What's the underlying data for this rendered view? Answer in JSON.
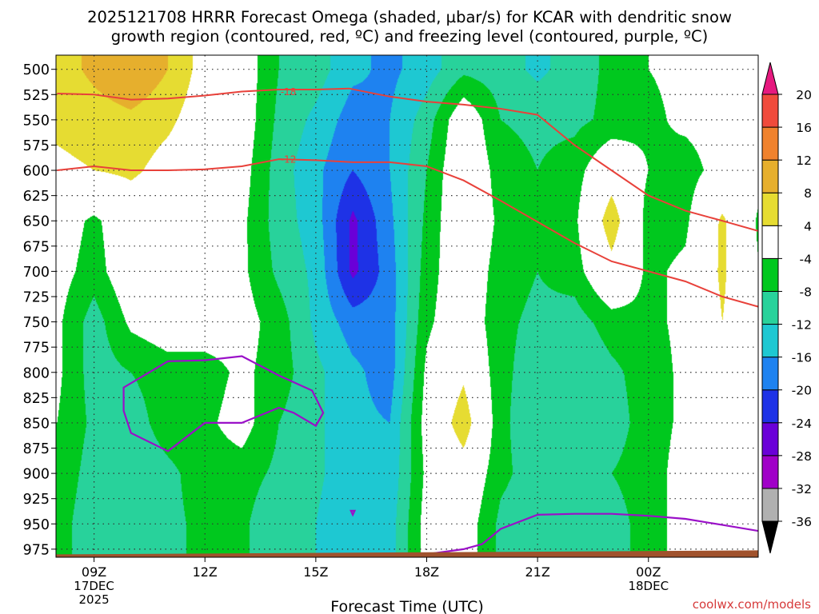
{
  "chart_data": {
    "type": "heatmap",
    "title_line1": "2025121708 HRRR Forecast Omega (shaded, µbar/s) for KCAR with dendritic snow",
    "title_line2": "growth region (contoured, red, ºC) and freezing level (contoured, purple, ºC)",
    "xlabel": "Forecast Time (UTC)",
    "credit": "coolwx.com/models",
    "x_range_hours": [
      7.97,
      26.97
    ],
    "y_range_mb": [
      486,
      983
    ],
    "x_ticks": [
      {
        "h": 9,
        "label": "09Z",
        "sub1": "17DEC",
        "sub2": "2025"
      },
      {
        "h": 12,
        "label": "12Z",
        "sub1": "",
        "sub2": ""
      },
      {
        "h": 15,
        "label": "15Z",
        "sub1": "",
        "sub2": ""
      },
      {
        "h": 18,
        "label": "18Z",
        "sub1": "",
        "sub2": ""
      },
      {
        "h": 21,
        "label": "21Z",
        "sub1": "",
        "sub2": ""
      },
      {
        "h": 24,
        "label": "00Z",
        "sub1": "18DEC",
        "sub2": ""
      }
    ],
    "y_ticks": [
      500,
      525,
      550,
      575,
      600,
      625,
      650,
      675,
      700,
      725,
      750,
      775,
      800,
      825,
      850,
      875,
      900,
      925,
      950,
      975
    ],
    "y_tick_labels": [
      "500",
      "525",
      "550",
      "575",
      "600",
      "625",
      "650",
      "675",
      "700",
      "725",
      "750",
      "775",
      "800",
      "825",
      "850",
      "875",
      "900",
      "925",
      "950",
      "975"
    ],
    "colorbar": {
      "levels": [
        -36,
        -32,
        -28,
        -24,
        -20,
        -16,
        -12,
        -8,
        -4,
        4,
        8,
        12,
        16,
        20
      ],
      "labels": [
        "-36",
        "-32",
        "-28",
        "-24",
        "-20",
        "-16",
        "-12",
        "-8",
        "-4",
        "4",
        "8",
        "12",
        "16",
        "20"
      ],
      "colors": [
        "#b0b0b0",
        "#a000c8",
        "#6a00d8",
        "#1e32e6",
        "#1e82f0",
        "#1ec8d2",
        "#28d29b",
        "#00c81e",
        "#ffffff",
        "#e6dc32",
        "#e6af2d",
        "#f0822d",
        "#f04b3c"
      ],
      "below_color": "#000000",
      "above_color": "#e6197f"
    },
    "omega_field": {
      "hours": [
        8.0,
        9.0,
        10.0,
        11.0,
        12.0,
        13.0,
        14.0,
        15.0,
        16.0,
        17.0,
        18.0,
        19.0,
        20.0,
        21.0,
        22.0,
        23.0,
        24.0,
        25.0,
        26.0,
        27.0
      ],
      "levels": [
        500,
        550,
        600,
        650,
        700,
        750,
        800,
        850,
        900,
        950
      ],
      "values": [
        [
          6,
          9,
          12,
          8,
          2,
          -1,
          -8,
          -10,
          -15,
          -17,
          -14,
          -9,
          -10,
          -13,
          -10,
          -7,
          -4,
          -3,
          -1,
          -2
        ],
        [
          5,
          6,
          7,
          5,
          1,
          -1,
          -9,
          -13,
          -18,
          -16,
          -10,
          0,
          -8,
          -9,
          -9,
          -7,
          -5,
          -3,
          -2,
          -2
        ],
        [
          3,
          4,
          5,
          2,
          0,
          -2,
          -10,
          -15,
          -20,
          -16,
          -8,
          1,
          -6,
          -8,
          -6,
          1,
          -4,
          -6,
          -2,
          -2
        ],
        [
          -1,
          -5,
          0,
          0,
          0,
          -3,
          -10,
          -14,
          -25,
          -17,
          -7,
          1,
          -5,
          -8,
          -5,
          7,
          -6,
          -5,
          5,
          -5
        ],
        [
          -2,
          -6,
          0,
          0,
          0,
          -3,
          -9,
          -13,
          -25,
          -18,
          -6,
          0,
          -6,
          -8,
          -6,
          2,
          -5,
          -3,
          5,
          -4
        ],
        [
          -3,
          -10,
          -3,
          -1,
          -1,
          -2,
          -6,
          -13,
          -18,
          -18,
          -5,
          0,
          -7,
          -9,
          -10,
          -6,
          -5,
          -3,
          4,
          -2
        ],
        [
          -3,
          -10,
          -8,
          -6,
          -6,
          -3,
          -6,
          -11,
          -15,
          -18,
          -3,
          3,
          -7,
          -10,
          -12,
          -9,
          -6,
          -3,
          4,
          -2
        ],
        [
          -4,
          -9,
          -10,
          -6,
          -5,
          -2,
          -8,
          -11,
          -15,
          -16,
          -2,
          7,
          -7,
          -11,
          -12,
          -10,
          -6,
          -3,
          4,
          -1
        ],
        [
          -5,
          -10,
          -11,
          -9,
          -6,
          -6,
          -9,
          -11,
          -15,
          -15,
          -3,
          1,
          -7,
          -10,
          -10,
          -8,
          -6,
          -2,
          -1,
          -1
        ],
        [
          -6,
          -11,
          -10,
          -9,
          -7,
          -7,
          -12,
          -12,
          -16,
          -14,
          -2,
          -1,
          -9,
          -11,
          -11,
          -10,
          -6,
          -2,
          -1,
          -1
        ]
      ]
    },
    "dendritic_contours": [
      {
        "label": "-18",
        "label_at": [
          14.0,
          522
        ],
        "points": [
          [
            8.0,
            524
          ],
          [
            9.0,
            525
          ],
          [
            10.0,
            530
          ],
          [
            11.0,
            529
          ],
          [
            12.0,
            526
          ],
          [
            13.0,
            522
          ],
          [
            14.0,
            520
          ],
          [
            15.0,
            520
          ],
          [
            15.9,
            519
          ],
          [
            17.0,
            527
          ],
          [
            18.0,
            532
          ],
          [
            19.0,
            535
          ],
          [
            20.0,
            539
          ],
          [
            21.0,
            545
          ],
          [
            22.0,
            575
          ],
          [
            23.0,
            600
          ],
          [
            24.0,
            625
          ],
          [
            25.0,
            640
          ],
          [
            26.0,
            650
          ],
          [
            26.97,
            660
          ]
        ]
      },
      {
        "label": "-12",
        "label_at": [
          14.0,
          589
        ],
        "points": [
          [
            8.0,
            600
          ],
          [
            9.0,
            596
          ],
          [
            10.0,
            600
          ],
          [
            11.0,
            600
          ],
          [
            12.0,
            599
          ],
          [
            13.0,
            596
          ],
          [
            14.0,
            589
          ],
          [
            15.0,
            590
          ],
          [
            16.0,
            592
          ],
          [
            17.0,
            592
          ],
          [
            18.0,
            596
          ],
          [
            19.0,
            610
          ],
          [
            20.0,
            630
          ],
          [
            21.0,
            651
          ],
          [
            22.0,
            672
          ],
          [
            23.0,
            690
          ],
          [
            24.0,
            700
          ],
          [
            25.0,
            710
          ],
          [
            26.0,
            725
          ],
          [
            26.97,
            735
          ]
        ]
      }
    ],
    "freezing_level_contours": [
      {
        "points": [
          [
            11.0,
            878
          ],
          [
            10.0,
            860
          ],
          [
            9.8,
            838
          ],
          [
            9.8,
            815
          ],
          [
            11.0,
            789
          ],
          [
            12.0,
            788
          ],
          [
            13.0,
            784
          ],
          [
            14.0,
            803
          ],
          [
            14.9,
            818
          ],
          [
            15.2,
            840
          ],
          [
            15.0,
            853
          ],
          [
            14.4,
            840
          ],
          [
            14.0,
            835
          ],
          [
            13.0,
            850
          ],
          [
            12.0,
            850
          ],
          [
            11.0,
            878
          ]
        ]
      },
      {
        "points": [
          [
            18.0,
            980
          ],
          [
            19.0,
            975
          ],
          [
            19.5,
            970
          ],
          [
            20.0,
            955
          ],
          [
            21.0,
            941
          ],
          [
            22.0,
            940
          ],
          [
            23.0,
            940
          ],
          [
            24.0,
            942
          ],
          [
            25.0,
            945
          ],
          [
            26.0,
            951
          ],
          [
            26.97,
            957
          ]
        ]
      },
      {
        "points": [
          [
            15.95,
            937
          ],
          [
            16.0,
            941
          ],
          [
            16.05,
            937
          ],
          [
            15.95,
            937
          ]
        ]
      }
    ],
    "ground_level_mb": 977
  }
}
